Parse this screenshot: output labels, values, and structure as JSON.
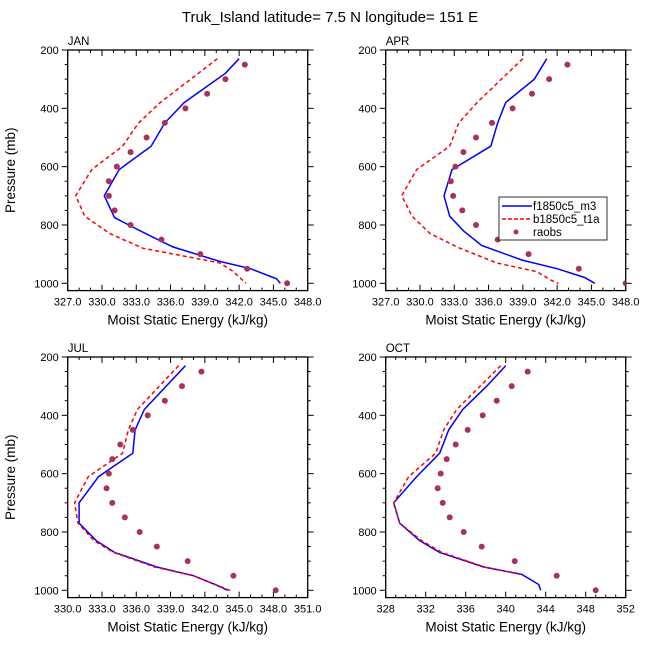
{
  "title": "Truk_Island  latitude= 7.5 N longitude= 151 E",
  "colors": {
    "model_m3": "#0000ff",
    "model_t1a": "#ff0000",
    "raobs": "#a8325e"
  },
  "legend": {
    "placement": "in APR panel, lower-right",
    "entries": [
      {
        "label": "f1850c5_m3",
        "style": "solid"
      },
      {
        "label": "b1850c5_t1a",
        "style": "dashed"
      },
      {
        "label": "raobs",
        "style": "marker"
      }
    ]
  },
  "chart_data": [
    {
      "type": "line",
      "title": "JAN",
      "xlabel": "Moist Static Energy (kJ/kg)",
      "ylabel": "Pressure (mb)",
      "xlim": [
        327,
        348
      ],
      "ylim": [
        1025,
        200
      ],
      "y_inverted": true,
      "xticks": [
        "327.0",
        "330.0",
        "333.0",
        "336.0",
        "339.0",
        "342.0",
        "345.0",
        "348.0"
      ],
      "xtick_values": [
        327,
        330,
        333,
        336,
        339,
        342,
        345,
        348
      ],
      "yticks": [
        "200",
        "400",
        "600",
        "800",
        "1000"
      ],
      "ytick_values": [
        200,
        400,
        600,
        800,
        1000
      ],
      "show_ylabel": true,
      "series": [
        {
          "name": "f1850c5_m3",
          "kind": "line",
          "pressure": [
            230,
            280,
            380,
            450,
            530,
            610,
            700,
            775,
            825,
            875,
            925,
            950,
            985,
            1000
          ],
          "values": [
            342.0,
            340.8,
            337.2,
            335.5,
            334.3,
            331.5,
            330.2,
            331.1,
            333.6,
            336.2,
            340.3,
            343.0,
            345.3,
            345.6
          ]
        },
        {
          "name": "b1850c5_t1a",
          "kind": "dashed",
          "pressure": [
            230,
            380,
            450,
            530,
            610,
            700,
            770,
            830,
            880,
            930,
            960,
            1000
          ],
          "values": [
            340.1,
            335.1,
            333.2,
            331.8,
            329.1,
            327.7,
            328.5,
            330.7,
            333.6,
            340.3,
            341.5,
            342.6
          ]
        },
        {
          "name": "raobs",
          "kind": "marker",
          "pressure": [
            250,
            300,
            350,
            400,
            450,
            500,
            550,
            600,
            650,
            700,
            750,
            800,
            850,
            900,
            950,
            1000
          ],
          "values": [
            342.5,
            340.8,
            339.2,
            337.3,
            335.5,
            333.9,
            332.5,
            331.3,
            330.6,
            330.6,
            331.1,
            332.5,
            335.2,
            338.6,
            342.7,
            346.2
          ]
        }
      ]
    },
    {
      "type": "line",
      "title": "APR",
      "xlabel": "Moist Static Energy (kJ/kg)",
      "ylabel": "",
      "xlim": [
        327,
        348
      ],
      "ylim": [
        1025,
        200
      ],
      "y_inverted": true,
      "xticks": [
        "327.0",
        "330.0",
        "333.0",
        "336.0",
        "339.0",
        "342.0",
        "345.0",
        "348.0"
      ],
      "xtick_values": [
        327,
        330,
        333,
        336,
        339,
        342,
        345,
        348
      ],
      "yticks": [
        "200",
        "400",
        "600",
        "800",
        "1000"
      ],
      "ytick_values": [
        200,
        400,
        600,
        800,
        1000
      ],
      "show_ylabel": false,
      "series": [
        {
          "name": "f1850c5_m3",
          "kind": "line",
          "pressure": [
            230,
            300,
            380,
            450,
            530,
            610,
            700,
            770,
            820,
            870,
            920,
            950,
            980,
            1000
          ],
          "values": [
            341.1,
            340.0,
            337.5,
            336.8,
            336.2,
            332.8,
            332.1,
            332.6,
            333.8,
            335.4,
            338.9,
            342.0,
            344.4,
            345.3
          ]
        },
        {
          "name": "b1850c5_t1a",
          "kind": "dashed",
          "pressure": [
            230,
            380,
            450,
            530,
            610,
            700,
            770,
            830,
            880,
            930,
            960,
            990,
            1000
          ],
          "values": [
            339.0,
            335.0,
            333.4,
            332.6,
            329.7,
            328.4,
            329.3,
            330.9,
            333.5,
            336.7,
            340.2,
            341.5,
            342.1
          ]
        },
        {
          "name": "raobs",
          "kind": "marker",
          "pressure": [
            250,
            300,
            350,
            400,
            450,
            500,
            550,
            600,
            650,
            700,
            750,
            800,
            850,
            900,
            950,
            1000
          ],
          "values": [
            342.9,
            341.3,
            339.8,
            338.1,
            336.3,
            334.9,
            333.8,
            333.1,
            332.7,
            332.9,
            333.7,
            334.9,
            336.8,
            339.5,
            343.9,
            348.0
          ]
        }
      ]
    },
    {
      "type": "line",
      "title": "JUL",
      "xlabel": "Moist Static Energy (kJ/kg)",
      "ylabel": "Pressure (mb)",
      "xlim": [
        330,
        351
      ],
      "ylim": [
        1025,
        200
      ],
      "y_inverted": true,
      "xticks": [
        "330.0",
        "333.0",
        "336.0",
        "339.0",
        "342.0",
        "345.0",
        "348.0",
        "351.0"
      ],
      "xtick_values": [
        330,
        333,
        336,
        339,
        342,
        345,
        348,
        351
      ],
      "yticks": [
        "200",
        "400",
        "600",
        "800",
        "1000"
      ],
      "ytick_values": [
        200,
        400,
        600,
        800,
        1000
      ],
      "show_ylabel": true,
      "series": [
        {
          "name": "f1850c5_m3",
          "kind": "line",
          "pressure": [
            230,
            380,
            450,
            530,
            610,
            700,
            770,
            830,
            870,
            920,
            950,
            980,
            1000
          ],
          "values": [
            340.3,
            336.7,
            335.9,
            335.7,
            332.7,
            331.0,
            331.0,
            332.5,
            334.1,
            337.8,
            341.0,
            342.9,
            344.0
          ]
        },
        {
          "name": "b1850c5_t1a",
          "kind": "dashed",
          "pressure": [
            230,
            380,
            450,
            530,
            610,
            700,
            770,
            830,
            870,
            920,
            950,
            980,
            1000
          ],
          "values": [
            339.7,
            336.1,
            335.3,
            334.8,
            331.8,
            330.6,
            330.9,
            332.3,
            334.0,
            337.6,
            341.0,
            342.9,
            344.2
          ]
        },
        {
          "name": "raobs",
          "kind": "marker",
          "pressure": [
            250,
            300,
            350,
            400,
            450,
            500,
            550,
            600,
            650,
            700,
            750,
            800,
            850,
            900,
            950,
            1000
          ],
          "values": [
            341.7,
            340.0,
            338.5,
            337.0,
            335.7,
            334.6,
            333.9,
            333.6,
            333.4,
            333.9,
            335.0,
            336.3,
            337.8,
            340.5,
            344.5,
            348.2
          ]
        }
      ]
    },
    {
      "type": "line",
      "title": "OCT",
      "xlabel": "Moist Static Energy (kJ/kg)",
      "ylabel": "",
      "xlim": [
        328,
        352
      ],
      "ylim": [
        1025,
        200
      ],
      "y_inverted": true,
      "xticks": [
        "328",
        "332",
        "336",
        "340",
        "344",
        "348",
        "352"
      ],
      "xtick_values": [
        328,
        332,
        336,
        340,
        344,
        348,
        352
      ],
      "yticks": [
        "200",
        "400",
        "600",
        "800",
        "1000"
      ],
      "ytick_values": [
        200,
        400,
        600,
        800,
        1000
      ],
      "show_ylabel": false,
      "series": [
        {
          "name": "f1850c5_m3",
          "kind": "line",
          "pressure": [
            230,
            300,
            380,
            450,
            530,
            610,
            700,
            770,
            830,
            870,
            920,
            945,
            980,
            1000
          ],
          "values": [
            340.0,
            338.1,
            335.7,
            334.3,
            333.4,
            331.1,
            328.8,
            329.4,
            331.4,
            333.4,
            337.8,
            341.6,
            343.3,
            343.5
          ]
        },
        {
          "name": "b1850c5_t1a",
          "kind": "dashed",
          "pressure": [
            230,
            380,
            450,
            530,
            610,
            700,
            770,
            830,
            870,
            920,
            945
          ],
          "values": [
            339.5,
            335.1,
            333.8,
            333.0,
            330.3,
            328.8,
            329.4,
            331.6,
            333.6,
            337.9,
            341.4
          ]
        },
        {
          "name": "raobs",
          "kind": "marker",
          "pressure": [
            250,
            300,
            350,
            400,
            450,
            500,
            550,
            600,
            650,
            700,
            750,
            800,
            850,
            900,
            950,
            1000
          ],
          "values": [
            342.2,
            340.6,
            339.1,
            337.7,
            336.2,
            335.0,
            334.1,
            333.5,
            333.2,
            333.7,
            334.4,
            335.8,
            337.6,
            340.9,
            345.1,
            349.0
          ]
        }
      ]
    }
  ]
}
